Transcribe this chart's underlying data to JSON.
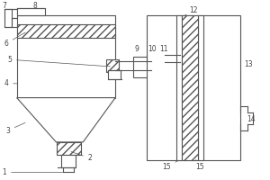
{
  "bg_color": "#ffffff",
  "line_color": "#555555",
  "label_color": "#444444",
  "figsize": [
    3.0,
    2.0
  ],
  "dpi": 100,
  "lw": 0.8,
  "fs": 5.5
}
